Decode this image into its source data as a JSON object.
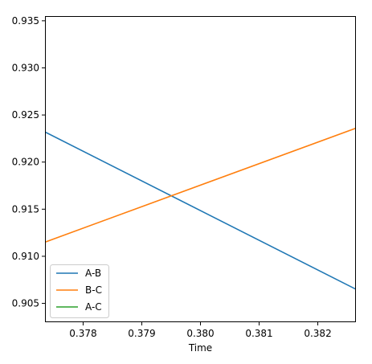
{
  "chart_data": {
    "type": "line",
    "title": "",
    "xlabel": "Time",
    "ylabel": "",
    "xlim": [
      0.37735,
      0.38265
    ],
    "ylim": [
      0.903,
      0.9355
    ],
    "x_ticks": [
      0.378,
      0.379,
      0.38,
      0.381,
      0.382
    ],
    "x_tick_labels": [
      "0.378",
      "0.379",
      "0.380",
      "0.381",
      "0.382"
    ],
    "y_ticks": [
      0.905,
      0.91,
      0.915,
      0.92,
      0.925,
      0.93,
      0.935
    ],
    "y_tick_labels": [
      "0.905",
      "0.910",
      "0.915",
      "0.920",
      "0.925",
      "0.930",
      "0.935"
    ],
    "grid": false,
    "legend_position": "lower-left",
    "series": [
      {
        "name": "A-B",
        "color": "#1f77b4",
        "x": [
          0.37735,
          0.38265
        ],
        "y": [
          0.9232,
          0.9065
        ]
      },
      {
        "name": "B-C",
        "color": "#ff7f0e",
        "x": [
          0.37735,
          0.38265
        ],
        "y": [
          0.9115,
          0.9236
        ]
      },
      {
        "name": "A-C",
        "color": "#2ca02c",
        "x": [],
        "y": []
      }
    ]
  }
}
